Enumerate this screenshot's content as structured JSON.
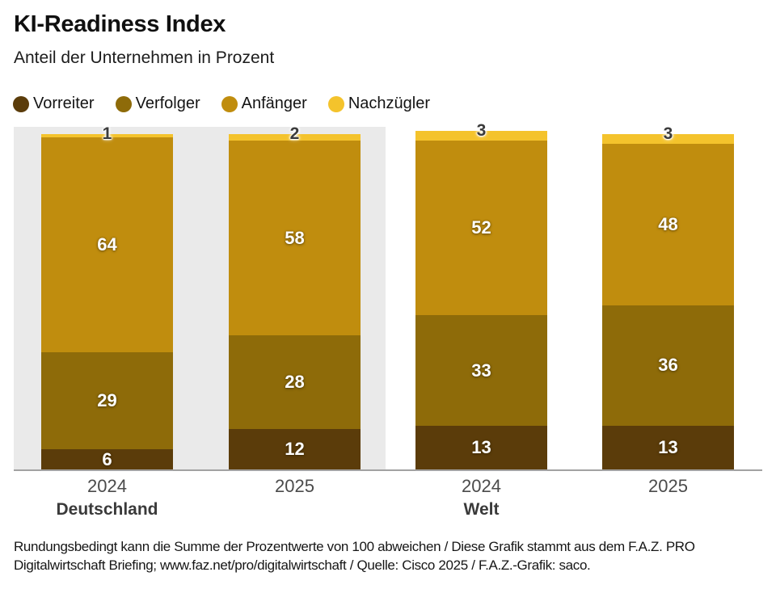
{
  "header": {
    "title": "KI-Readiness Index",
    "subtitle": "Anteil der Unternehmen in Prozent"
  },
  "legend": {
    "items": [
      {
        "label": "Vorreiter",
        "color": "#5b3c0a"
      },
      {
        "label": "Verfolger",
        "color": "#8e6b09"
      },
      {
        "label": "Anfänger",
        "color": "#c08d0e"
      },
      {
        "label": "Nachzügler",
        "color": "#f4c32c"
      }
    ]
  },
  "chart_data": {
    "type": "bar",
    "stacked": true,
    "unit": "percent",
    "title": "KI-Readiness Index",
    "subtitle": "Anteil der Unternehmen in Prozent",
    "categories": [
      "2024",
      "2025",
      "2024",
      "2025"
    ],
    "groups": [
      {
        "label": "Deutschland",
        "bar_indices": [
          0,
          1
        ],
        "highlight_panel": true
      },
      {
        "label": "Welt",
        "bar_indices": [
          2,
          3
        ],
        "highlight_panel": false
      }
    ],
    "series": [
      {
        "name": "Vorreiter",
        "color": "#5b3c0a",
        "values": [
          6,
          12,
          13,
          13
        ]
      },
      {
        "name": "Verfolger",
        "color": "#8e6b09",
        "values": [
          29,
          28,
          33,
          36
        ]
      },
      {
        "name": "Anfänger",
        "color": "#c08d0e",
        "values": [
          64,
          58,
          52,
          48
        ]
      },
      {
        "name": "Nachzügler",
        "color": "#f4c32c",
        "values": [
          1,
          2,
          3,
          3
        ]
      }
    ],
    "ylim": [
      0,
      101
    ],
    "grid": false,
    "legend_position": "top",
    "value_labels": "inside-white, top segment dark above bar"
  },
  "colors": {
    "panel_background": "#eaeaea",
    "axis_line": "#a2a2a2",
    "xlabel_text": "#4b4b4b",
    "group_label_text": "#3a3a3a"
  },
  "footer": {
    "line1": "Rundungsbedingt kann die Summe der Prozentwerte von 100 abweichen / Diese Grafik stammt aus dem F.A.Z. PRO",
    "line2": "Digitalwirtschaft Briefing; www.faz.net/pro/digitalwirtschaft / Quelle: Cisco 2025 / F.A.Z.-Grafik: saco."
  }
}
